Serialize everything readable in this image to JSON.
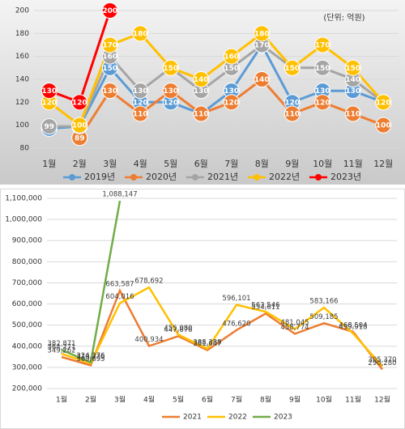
{
  "chart_data": [
    {
      "type": "line",
      "annotation": "(단위: 억원)",
      "categories": [
        "1월",
        "2월",
        "3월",
        "4월",
        "5월",
        "6월",
        "7월",
        "8월",
        "9월",
        "10월",
        "11월",
        "12월"
      ],
      "ylim": [
        80,
        200
      ],
      "yticks": [
        80,
        100,
        120,
        140,
        160,
        180,
        200
      ],
      "grid": true,
      "legend": "bottom",
      "series": [
        {
          "name": "2019년",
          "color": "#5b9bd5",
          "values": [
            97,
            99,
            150,
            120,
            120,
            110,
            130,
            170,
            120,
            130,
            130,
            120
          ]
        },
        {
          "name": "2020년",
          "color": "#ed7d31",
          "values": [
            null,
            89,
            130,
            110,
            130,
            110,
            120,
            140,
            110,
            120,
            110,
            100
          ]
        },
        {
          "name": "2021년",
          "color": "#a5a5a5",
          "values": [
            99,
            99,
            160,
            130,
            150,
            130,
            150,
            170,
            150,
            150,
            140,
            120
          ]
        },
        {
          "name": "2022년",
          "color": "#ffc000",
          "values": [
            120,
            100,
            170,
            180,
            150,
            140,
            160,
            180,
            150,
            170,
            150,
            120
          ]
        },
        {
          "name": "2023년",
          "color": "#ff0000",
          "values": [
            130,
            120,
            200,
            null,
            null,
            null,
            null,
            null,
            null,
            null,
            null,
            null
          ]
        }
      ]
    },
    {
      "type": "line",
      "categories": [
        "1월",
        "2월",
        "3월",
        "4월",
        "5월",
        "6월",
        "7월",
        "8월",
        "9월",
        "10월",
        "11월",
        "12월"
      ],
      "ylim": [
        200000,
        1100000
      ],
      "yticks": [
        {
          "value": 200000,
          "label": "200,000"
        },
        {
          "value": 300000,
          "label": "300,000"
        },
        {
          "value": 400000,
          "label": "400,000"
        },
        {
          "value": 500000,
          "label": "500,000"
        },
        {
          "value": 600000,
          "label": "600,000"
        },
        {
          "value": 700000,
          "label": "700,000"
        },
        {
          "value": 800000,
          "label": "800,000"
        },
        {
          "value": 900000,
          "label": "900,000"
        },
        {
          "value": 1000000,
          "label": "1,000,000"
        },
        {
          "value": 1100000,
          "label": "1,100,000"
        }
      ],
      "grid": true,
      "legend": "bottom",
      "series": [
        {
          "name": "2021",
          "color": "#ed7d31",
          "values": [
            349262,
            309895,
            663587,
            400934,
            447876,
            381647,
            476620,
            554611,
            458774,
            509185,
            468504,
            290280
          ],
          "value_labels": [
            "349,262",
            "309,895",
            "663,587",
            "400,934",
            "447,876",
            "381,647",
            "476,620",
            "554,611",
            "458,774",
            "509,185",
            "468,504",
            "290,280"
          ]
        },
        {
          "name": "2022",
          "color": "#ffc000",
          "values": [
            364271,
            319230,
            604016,
            678692,
            455080,
            388389,
            596101,
            563546,
            481045,
            583166,
            459918,
            305370
          ],
          "value_labels": [
            "364,271",
            "319,230",
            "604,016",
            "678,692",
            "455,080",
            "388,389",
            "596,101",
            "563,546",
            "481,045",
            "583,166",
            "459,918",
            "305,370"
          ]
        },
        {
          "name": "2023",
          "color": "#70ad47",
          "values": [
            382871,
            324276,
            1088147,
            null,
            null,
            null,
            null,
            null,
            null,
            null,
            null,
            null
          ],
          "value_labels": [
            "382,871",
            "324,276",
            "1,088,147",
            null,
            null,
            null,
            null,
            null,
            null,
            null,
            null,
            null
          ]
        }
      ]
    }
  ]
}
